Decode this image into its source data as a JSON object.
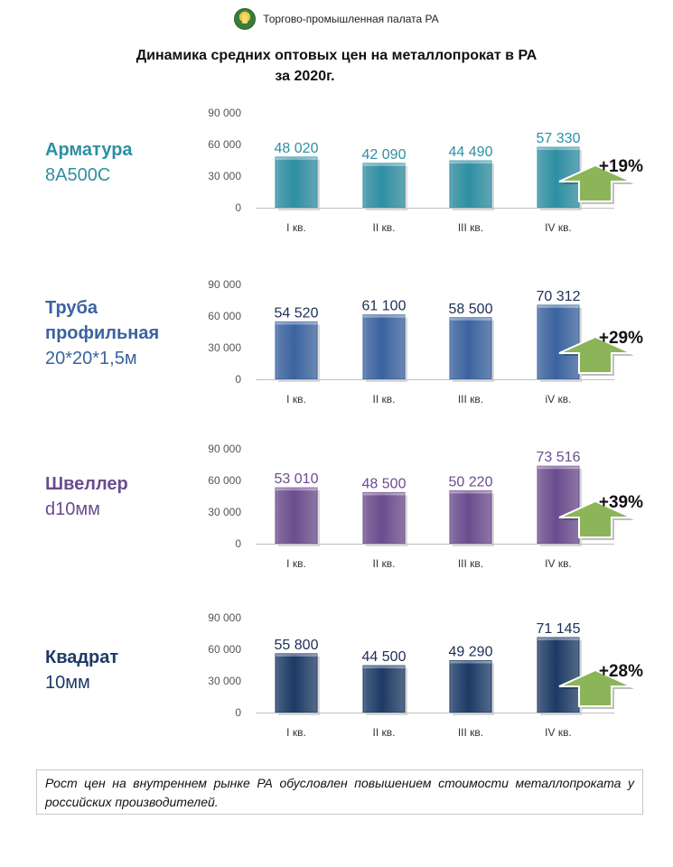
{
  "header": {
    "org": "Торгово-промышленная палата РА"
  },
  "title": {
    "line1": "Динамика средних оптовых цен на металлопрокат  в РА",
    "line2": "за 2020г."
  },
  "products": [
    {
      "name_bold": "Арматура",
      "name_rest": "8А500С",
      "color": "#2e8fa3"
    },
    {
      "name_bold": "Труба профильная",
      "name_rest": "20*20*1,5м",
      "color": "#3b63a0"
    },
    {
      "name_bold": "Швеллер",
      "name_rest": "d10мм",
      "color": "#6b4c8e"
    },
    {
      "name_bold": "Квадрат",
      "name_rest": "10мм",
      "color": "#1c3a66"
    }
  ],
  "chart_data": [
    {
      "type": "bar",
      "categories": [
        "I кв.",
        "II кв.",
        "III кв.",
        "IV кв."
      ],
      "values": [
        48020,
        42090,
        44490,
        57330
      ],
      "value_labels": [
        "48 020",
        "42 090",
        "44 490",
        "57 330"
      ],
      "ylim": [
        0,
        90000
      ],
      "yticks": [
        "0",
        "30 000",
        "60 000",
        "90 000"
      ],
      "color": "#2e8fa3",
      "label_color": "#2e8fa3",
      "annotation": "+19%"
    },
    {
      "type": "bar",
      "categories": [
        "I кв.",
        "II кв.",
        "III кв.",
        "iV кв."
      ],
      "values": [
        54520,
        61100,
        58500,
        70312
      ],
      "value_labels": [
        "54 520",
        "61 100",
        "58 500",
        "70 312"
      ],
      "ylim": [
        0,
        90000
      ],
      "yticks": [
        "0",
        "30 000",
        "60 000",
        "90 000"
      ],
      "color": "#3b63a0",
      "label_color": "#1c2f55",
      "annotation": "+29%"
    },
    {
      "type": "bar",
      "categories": [
        "I кв.",
        "II кв.",
        "III кв.",
        "IV кв."
      ],
      "values": [
        53010,
        48500,
        50220,
        73516
      ],
      "value_labels": [
        "53 010",
        "48 500",
        "50 220",
        "73 516"
      ],
      "ylim": [
        0,
        90000
      ],
      "yticks": [
        "0",
        "30 000",
        "60 000",
        "90 000"
      ],
      "color": "#6b4c8e",
      "label_color": "#6b4c8e",
      "annotation": "+39%"
    },
    {
      "type": "bar",
      "categories": [
        "I кв.",
        "II кв.",
        "III кв.",
        "IV кв."
      ],
      "values": [
        55800,
        44500,
        49290,
        71145
      ],
      "value_labels": [
        "55 800",
        "44 500",
        "49 290",
        "71 145"
      ],
      "ylim": [
        0,
        90000
      ],
      "yticks": [
        "0",
        "30 000",
        "60 000",
        "90 000"
      ],
      "color": "#1c3a66",
      "label_color": "#1c2f55",
      "annotation": "+28%"
    }
  ],
  "note": "Рост цен на внутреннем рынке РА обусловлен повышением стоимости металлопроката у российских производителей.",
  "colors": {
    "arrow": "#8bb558",
    "tick": "#555555"
  },
  "icons": {
    "logo": "chamber-logo-icon",
    "arrow": "up-arrow-icon"
  }
}
